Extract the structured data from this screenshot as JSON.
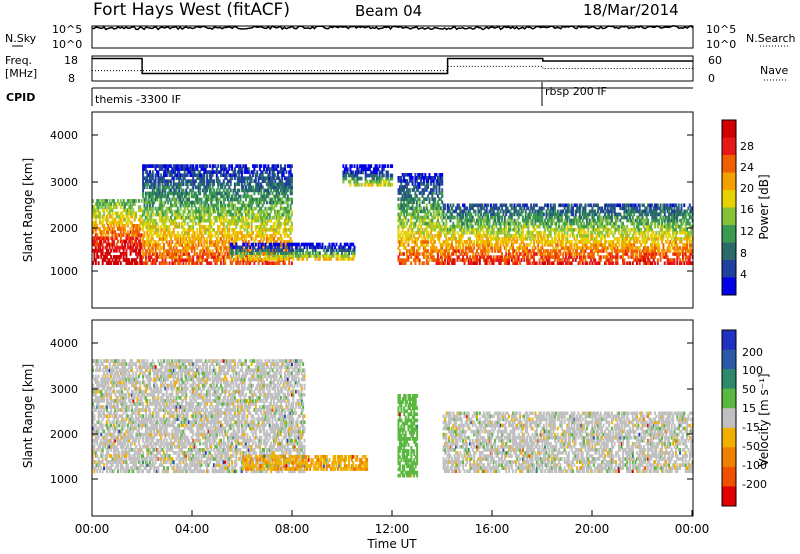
{
  "header": {
    "radar": "Fort Hays West (fitACF)",
    "beam": "Beam 04",
    "date": "18/Mar/2014"
  },
  "top_panel": {
    "left_label": "N.Sky",
    "right_label": "N.Search",
    "left_ticks": [
      "10^5",
      "10^0"
    ],
    "right_ticks": [
      "10^5",
      "10^0"
    ]
  },
  "freq_panel": {
    "left_label_1": "Freq.",
    "left_label_2": "[MHz]",
    "right_label": "Nave",
    "left_ticks": [
      "18",
      "8"
    ],
    "right_ticks": [
      "60",
      "0"
    ]
  },
  "cpid": {
    "label": "CPID",
    "modes": [
      "themis -3300 IF",
      "rbsp 200 IF"
    ]
  },
  "x_axis": {
    "ticks": [
      "00:00",
      "04:00",
      "08:00",
      "12:00",
      "16:00",
      "20:00",
      "00:00"
    ],
    "label": "Time UT"
  },
  "power_panel": {
    "ylabel": "Slant Range [km]",
    "yticks": [
      "4000",
      "3000",
      "2000",
      "1000"
    ],
    "colorbar_label": "Power [dB]",
    "colorbar_ticks": [
      "28",
      "24",
      "20",
      "16",
      "12",
      "8",
      "4"
    ],
    "colors": [
      "#0000e6",
      "#2040a0",
      "#2a6a6a",
      "#3a9a50",
      "#86c23a",
      "#e6d200",
      "#f4a000",
      "#f06000",
      "#e81818",
      "#d00000"
    ]
  },
  "velocity_panel": {
    "ylabel": "Slant Range [km]",
    "yticks": [
      "4000",
      "3000",
      "2000",
      "1000"
    ],
    "colorbar_label": "Velocity [m s⁻¹]",
    "colorbar_ticks": [
      "200",
      "100",
      "50",
      "15",
      "-15",
      "-50",
      "-100",
      "-200"
    ],
    "colors": [
      "#2030c0",
      "#2c5aa8",
      "#2c8a6a",
      "#5ab840",
      "#c0c0c0",
      "#f0b000",
      "#f08000",
      "#f05000",
      "#e00000"
    ]
  },
  "chart_data": [
    {
      "type": "line",
      "title": "N.Sky / N.Search",
      "x": [
        "00:00",
        "04:00",
        "08:00",
        "12:00",
        "16:00",
        "20:00",
        "00:00"
      ],
      "series": [
        {
          "name": "N.Sky",
          "values": [
            30000,
            40000,
            45000,
            40000,
            35000,
            50000,
            60000
          ]
        }
      ]
    },
    {
      "type": "line",
      "title": "Freq. [MHz]",
      "x_hours": [
        0,
        2.0,
        2.0,
        14.2,
        14.2,
        18.0,
        18.0,
        24
      ],
      "series": [
        {
          "name": "Freq.",
          "values": [
            17,
            17,
            11,
            11,
            17,
            17,
            16,
            16
          ]
        },
        {
          "name": "Nave",
          "values": [
            25,
            25,
            25,
            25,
            35,
            35,
            30,
            30
          ]
        }
      ]
    },
    {
      "type": "heatmap",
      "title": "Power [dB]",
      "xlabel": "Time UT",
      "ylabel": "Slant Range [km]",
      "xlim_hours": [
        0,
        24
      ],
      "ylim": [
        0,
        4500
      ],
      "regions": [
        {
          "t0": 0.0,
          "t1": 2.0,
          "r0": 1000,
          "r1": 2500,
          "value": 22
        },
        {
          "t0": 2.0,
          "t1": 8.0,
          "r0": 1000,
          "r1": 3300,
          "value": 14
        },
        {
          "t0": 5.5,
          "t1": 10.5,
          "r0": 1100,
          "r1": 1500,
          "value": 8
        },
        {
          "t0": 10.0,
          "t1": 12.0,
          "r0": 2800,
          "r1": 3300,
          "value": 6
        },
        {
          "t0": 12.2,
          "t1": 14.0,
          "r0": 1000,
          "r1": 3100,
          "value": 14
        },
        {
          "t0": 14.0,
          "t1": 24.0,
          "r0": 1000,
          "r1": 2400,
          "value": 16
        }
      ]
    },
    {
      "type": "heatmap",
      "title": "Velocity [m s⁻¹]",
      "xlabel": "Time UT",
      "ylabel": "Slant Range [km]",
      "xlim_hours": [
        0,
        24
      ],
      "ylim": [
        0,
        4500
      ],
      "regions": [
        {
          "t0": 0.0,
          "t1": 8.5,
          "r0": 1000,
          "r1": 3600,
          "value": 0
        },
        {
          "t0": 6.0,
          "t1": 11.0,
          "r0": 1050,
          "r1": 1400,
          "value": -60
        },
        {
          "t0": 12.2,
          "t1": 13.0,
          "r0": 900,
          "r1": 2800,
          "value": 40
        },
        {
          "t0": 14.0,
          "t1": 24.0,
          "r0": 1000,
          "r1": 2400,
          "value": 0
        }
      ]
    }
  ]
}
